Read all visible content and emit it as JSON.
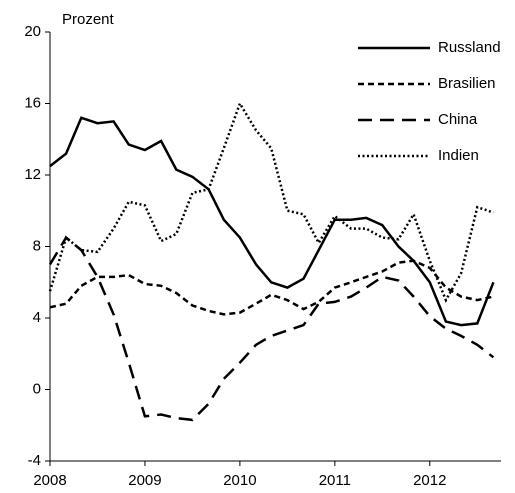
{
  "chart_data": {
    "type": "line",
    "y_label": "Prozent",
    "x": [
      2008.0,
      2008.17,
      2008.33,
      2008.5,
      2008.67,
      2008.83,
      2009.0,
      2009.17,
      2009.33,
      2009.5,
      2009.67,
      2009.83,
      2010.0,
      2010.17,
      2010.33,
      2010.5,
      2010.67,
      2010.83,
      2011.0,
      2011.17,
      2011.33,
      2011.5,
      2011.67,
      2011.83,
      2012.0,
      2012.17,
      2012.33,
      2012.5,
      2012.67
    ],
    "series": [
      {
        "name": "Russland",
        "color": "#000000",
        "dash": "solid",
        "values": [
          12.5,
          13.2,
          15.2,
          14.9,
          15.0,
          13.7,
          13.4,
          13.9,
          12.3,
          11.9,
          11.2,
          9.5,
          8.5,
          7.0,
          6.0,
          5.7,
          6.2,
          7.8,
          9.5,
          9.5,
          9.6,
          9.2,
          8.0,
          7.2,
          6.0,
          3.8,
          3.6,
          3.7,
          6.0
        ]
      },
      {
        "name": "Brasilien",
        "color": "#000000",
        "dash": "short-dash",
        "values": [
          4.6,
          4.8,
          5.8,
          6.3,
          6.3,
          6.4,
          5.9,
          5.8,
          5.4,
          4.7,
          4.4,
          4.2,
          4.3,
          4.8,
          5.3,
          5.0,
          4.5,
          4.9,
          5.7,
          6.0,
          6.3,
          6.6,
          7.1,
          7.2,
          6.8,
          5.7,
          5.2,
          5.0,
          5.2
        ]
      },
      {
        "name": "China",
        "color": "#000000",
        "dash": "long-dash",
        "values": [
          7.0,
          8.5,
          7.8,
          6.3,
          4.2,
          1.5,
          -1.5,
          -1.4,
          -1.6,
          -1.7,
          -0.8,
          0.6,
          1.5,
          2.5,
          3.0,
          3.3,
          3.6,
          4.8,
          4.9,
          5.2,
          5.7,
          6.3,
          6.1,
          5.2,
          4.1,
          3.4,
          3.0,
          2.5,
          1.8
        ]
      },
      {
        "name": "Indien",
        "color": "#000000",
        "dash": "dotted",
        "values": [
          5.5,
          8.5,
          7.8,
          7.7,
          9.0,
          10.5,
          10.3,
          8.3,
          8.7,
          11.0,
          11.2,
          13.5,
          16.0,
          14.5,
          13.5,
          10.0,
          9.8,
          8.2,
          9.7,
          9.0,
          9.0,
          8.5,
          8.4,
          9.8,
          7.2,
          5.0,
          6.5,
          10.2,
          9.9
        ]
      }
    ],
    "xlim": [
      2008,
      2012.75
    ],
    "xticks": [
      2008,
      2009,
      2010,
      2011,
      2012
    ],
    "ylim": [
      -4,
      20
    ],
    "yticks": [
      -4,
      0,
      4,
      8,
      12,
      16,
      20
    ],
    "legend": "top-right"
  }
}
